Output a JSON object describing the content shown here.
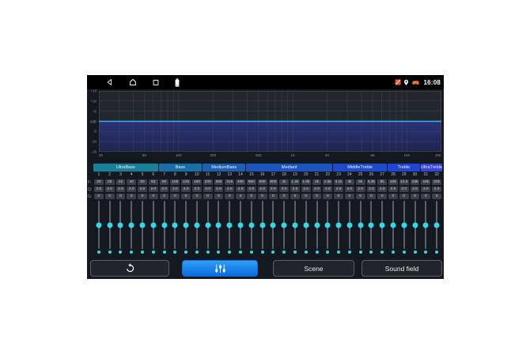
{
  "status_bar": {
    "time": "16:08",
    "nav_icons": [
      "back",
      "home",
      "recents",
      "battery"
    ],
    "status_icons": [
      "sim-status",
      "location",
      "car"
    ]
  },
  "graph": {
    "y_tick_labels": [
      "+15",
      "+10",
      "+5",
      "0dB",
      "-5",
      "-10",
      "-15"
    ],
    "y_range_db": [
      -15,
      15
    ],
    "x_ticks": [
      {
        "label": "20",
        "f": 20
      },
      {
        "label": "50",
        "f": 50
      },
      {
        "label": "100",
        "f": 100
      },
      {
        "label": "200",
        "f": 200
      },
      {
        "label": "500",
        "f": 500
      },
      {
        "label": "1K",
        "f": 1000
      },
      {
        "label": "2K",
        "f": 2000
      },
      {
        "label": "5K",
        "f": 5000
      },
      {
        "label": "10K",
        "f": 10000
      },
      {
        "label": "20K",
        "f": 20000
      }
    ],
    "curve_db": 0,
    "curve_color": "#2eb6f2",
    "fill_color_top": "#2c3376",
    "fill_color_bottom": "#1f2450",
    "grid_color": "#4a505a"
  },
  "groups": [
    {
      "label": "UltraBass",
      "span": 6,
      "color": "#17819c"
    },
    {
      "label": "Bass",
      "span": 4,
      "color": "#176fa9"
    },
    {
      "label": "MediumBass",
      "span": 4,
      "color": "#1a61b5"
    },
    {
      "label": "Mediant",
      "span": 8,
      "color": "#1b55c2"
    },
    {
      "label": "MiddleTreble",
      "span": 5,
      "color": "#1d4bcd"
    },
    {
      "label": "Treble",
      "span": 3,
      "color": "#2244d6"
    },
    {
      "label": "UltraTreble",
      "span": 2,
      "color": "#3744de"
    }
  ],
  "bands": {
    "row_labels": [
      "F:",
      "Q:",
      "G:"
    ],
    "numbers": [
      "1",
      "2",
      "3",
      "4",
      "5",
      "6",
      "7",
      "8",
      "9",
      "10",
      "11",
      "12",
      "13",
      "14",
      "15",
      "16",
      "17",
      "18",
      "19",
      "20",
      "21",
      "22",
      "23",
      "24",
      "25",
      "26",
      "27",
      "28",
      "29",
      "30",
      "31",
      "32"
    ],
    "freqs": [
      "20",
      "25",
      "32",
      "40",
      "50",
      "63",
      "80",
      "100",
      "125",
      "160",
      "200",
      "250",
      "315",
      "400",
      "500",
      "630",
      "800",
      "1k",
      "1.2k",
      "1.6k",
      "2k",
      "2.5k",
      "3.1k",
      "4k",
      "5k",
      "6.3k",
      "8k",
      "10k",
      "12.5",
      "16k",
      "18k",
      "20k"
    ],
    "q_values": [
      "2.0",
      "2.0",
      "2.0",
      "2.0",
      "2.0",
      "2.0",
      "2.0",
      "2.0",
      "2.0",
      "2.0",
      "2.0",
      "2.0",
      "2.0",
      "2.0",
      "2.0",
      "2.0",
      "2.0",
      "2.0",
      "2.0",
      "2.0",
      "2.0",
      "2.0",
      "2.0",
      "2.0",
      "2.0",
      "2.0",
      "2.0",
      "2.0",
      "2.0",
      "2.0",
      "2.0",
      "2.0"
    ],
    "g_values": [
      "0",
      "0",
      "0",
      "0",
      "0",
      "0",
      "0",
      "0",
      "0",
      "0",
      "0",
      "0",
      "0",
      "0",
      "0",
      "0",
      "0",
      "0",
      "0",
      "0",
      "0",
      "0",
      "0",
      "0",
      "0",
      "0",
      "0",
      "0",
      "0",
      "0",
      "0",
      "0"
    ],
    "slider_gain_db": 0
  },
  "toolbar": {
    "buttons": [
      {
        "name": "reset",
        "icon": "reset-icon",
        "label": ""
      },
      {
        "name": "equalizer",
        "icon": "equalizer-sliders-icon",
        "label": "",
        "active": true
      },
      {
        "name": "scene",
        "label": "Scene"
      },
      {
        "name": "sound-field",
        "label": "Sound field"
      }
    ],
    "accent_color": "#0d7ae8"
  },
  "colors": {
    "screen_bg": "#14181f",
    "statusbar_bg": "#000000",
    "accent_cyan": "#31d8ec",
    "chip_bg": "#3a4049"
  }
}
